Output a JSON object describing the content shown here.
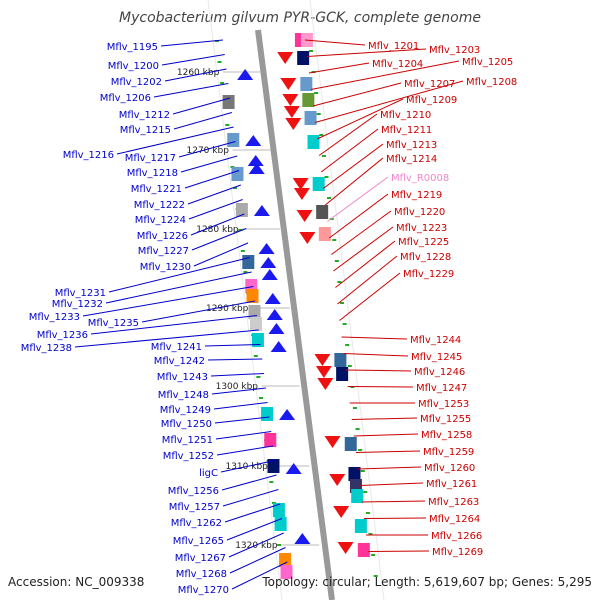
{
  "title": "Mycobacterium gilvum PYR-GCK, complete genome",
  "footer": {
    "accession": "Accession: NC_009338",
    "info": "Topology: circular; Length: 5,619,607 bp; Genes: 5,295"
  },
  "colors": {
    "left_label": "#0000cc",
    "right_label": "#cc0000",
    "rna_label": "#ee88cc",
    "axis": "#999999",
    "tick": "#22aa22",
    "left_arrow": "#1a1aee",
    "right_arrow": "#ee1111"
  },
  "kbp_marks": [
    "1260 kbp",
    "1270 kbp",
    "1280 kbp",
    "1290 kbp",
    "1300 kbp",
    "1310 kbp",
    "1320 kbp"
  ],
  "left_labels": [
    "Mflv_1195",
    "Mflv_1200",
    "Mflv_1202",
    "Mflv_1206",
    "Mflv_1212",
    "Mflv_1215",
    "Mflv_1216",
    "Mflv_1217",
    "Mflv_1218",
    "Mflv_1221",
    "Mflv_1222",
    "Mflv_1224",
    "Mflv_1226",
    "Mflv_1227",
    "Mflv_1230",
    "Mflv_1231",
    "Mflv_1232",
    "Mflv_1233",
    "Mflv_1235",
    "Mflv_1236",
    "Mflv_1238",
    "Mflv_1241",
    "Mflv_1242",
    "Mflv_1243",
    "Mflv_1248",
    "Mflv_1249",
    "Mflv_1250",
    "Mflv_1251",
    "Mflv_1252",
    "ligC",
    "Mflv_1256",
    "Mflv_1257",
    "Mflv_1262",
    "Mflv_1265",
    "Mflv_1267",
    "Mflv_1268",
    "Mflv_1270"
  ],
  "right_labels": [
    "Mflv_1201",
    "Mflv_1203",
    "Mflv_1204",
    "Mflv_1205",
    "Mflv_1207",
    "Mflv_1208",
    "Mflv_1209",
    "Mflv_1210",
    "Mflv_1211",
    "Mflv_1213",
    "Mflv_1214",
    "Mflv_R0008",
    "Mflv_1219",
    "Mflv_1220",
    "Mflv_1223",
    "Mflv_1225",
    "Mflv_1228",
    "Mflv_1229",
    "Mflv_1244",
    "Mflv_1245",
    "Mflv_1246",
    "Mflv_1247",
    "Mflv_1253",
    "Mflv_1255",
    "Mflv_1258",
    "Mflv_1259",
    "Mflv_1260",
    "Mflv_1261",
    "Mflv_1263",
    "Mflv_1264",
    "Mflv_1266",
    "Mflv_1269"
  ]
}
